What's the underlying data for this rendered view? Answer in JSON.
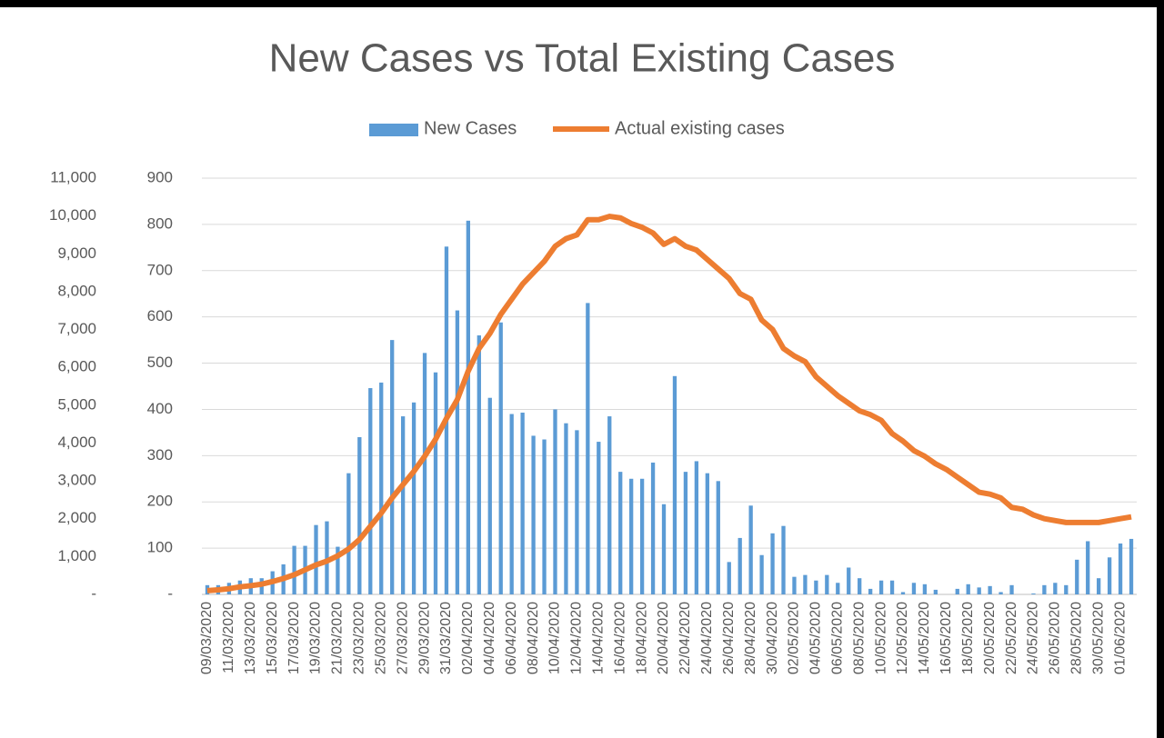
{
  "chart_data": {
    "type": "bar_line",
    "title": "New Cases vs Total Existing Cases",
    "categories": [
      "09/03/2020",
      null,
      "11/03/2020",
      null,
      "13/03/2020",
      null,
      "15/03/2020",
      null,
      "17/03/2020",
      null,
      "19/03/2020",
      null,
      "21/03/2020",
      null,
      "23/03/2020",
      null,
      "25/03/2020",
      null,
      "27/03/2020",
      null,
      "29/03/2020",
      null,
      "31/03/2020",
      null,
      "02/04/2020",
      null,
      "04/04/2020",
      null,
      "06/04/2020",
      null,
      "08/04/2020",
      null,
      "10/04/2020",
      null,
      "12/04/2020",
      null,
      "14/04/2020",
      null,
      "16/04/2020",
      null,
      "18/04/2020",
      null,
      "20/04/2020",
      null,
      "22/04/2020",
      null,
      "24/04/2020",
      null,
      "26/04/2020",
      null,
      "28/04/2020",
      null,
      "30/04/2020",
      null,
      "02/05/2020",
      null,
      "04/05/2020",
      null,
      "06/05/2020",
      null,
      "08/05/2020",
      null,
      "10/05/2020",
      null,
      "12/05/2020",
      null,
      "14/05/2020",
      null,
      "16/05/2020",
      null,
      "18/05/2020",
      null,
      "20/05/2020",
      null,
      "22/05/2020",
      null,
      "24/05/2020",
      null,
      "26/05/2020",
      null,
      "28/05/2020",
      null,
      "30/05/2020",
      null,
      "01/06/2020",
      null
    ],
    "series": [
      {
        "name": "New Cases",
        "kind": "bar",
        "axis": "y2",
        "color": "#5b9bd5",
        "values": [
          20,
          20,
          25,
          30,
          35,
          35,
          50,
          65,
          105,
          105,
          150,
          158,
          103,
          262,
          340,
          446,
          458,
          550,
          385,
          415,
          522,
          480,
          752,
          614,
          808,
          560,
          425,
          588,
          390,
          393,
          343,
          335,
          400,
          370,
          355,
          630,
          330,
          385,
          265,
          250,
          250,
          285,
          195,
          472,
          265,
          288,
          262,
          245,
          70,
          122,
          192,
          85,
          132,
          148,
          38,
          42,
          30,
          42,
          25,
          58,
          35,
          12,
          30,
          30,
          5,
          25,
          22,
          10,
          0,
          12,
          22,
          15,
          18,
          5,
          20,
          0,
          2,
          20,
          25,
          20,
          75,
          115,
          35,
          80,
          110,
          120
        ]
      },
      {
        "name": "Actual existing cases",
        "kind": "line",
        "axis": "y",
        "color": "#ed7d31",
        "values": [
          100,
          120,
          150,
          200,
          230,
          270,
          340,
          420,
          520,
          650,
          780,
          880,
          1020,
          1200,
          1450,
          1800,
          2150,
          2550,
          2900,
          3250,
          3650,
          4100,
          4650,
          5150,
          5900,
          6500,
          6900,
          7400,
          7800,
          8200,
          8500,
          8800,
          9200,
          9400,
          9500,
          9900,
          9900,
          9990,
          9950,
          9800,
          9700,
          9550,
          9250,
          9400,
          9200,
          9100,
          8850,
          8600,
          8350,
          7950,
          7800,
          7250,
          7000,
          6500,
          6300,
          6150,
          5750,
          5500,
          5250,
          5050,
          4850,
          4750,
          4600,
          4250,
          4050,
          3800,
          3650,
          3450,
          3300,
          3100,
          2900,
          2700,
          2650,
          2550,
          2300,
          2250,
          2100,
          2000,
          1950,
          1900,
          1900,
          1900,
          1900,
          1950,
          2000,
          2050
        ]
      }
    ],
    "ylim": [
      0,
      11000
    ],
    "yticks": [
      {
        "value": 0,
        "label": "-"
      },
      {
        "value": 1000,
        "label": "1,000"
      },
      {
        "value": 2000,
        "label": "2,000"
      },
      {
        "value": 3000,
        "label": "3,000"
      },
      {
        "value": 4000,
        "label": "4,000"
      },
      {
        "value": 5000,
        "label": "5,000"
      },
      {
        "value": 6000,
        "label": "6,000"
      },
      {
        "value": 7000,
        "label": "7,000"
      },
      {
        "value": 8000,
        "label": "8,000"
      },
      {
        "value": 9000,
        "label": "9,000"
      },
      {
        "value": 10000,
        "label": "10,000"
      },
      {
        "value": 11000,
        "label": "11,000"
      }
    ],
    "y2lim": [
      0,
      900
    ],
    "y2ticks": [
      {
        "value": 0,
        "label": "-"
      },
      100,
      200,
      300,
      400,
      500,
      600,
      700,
      800,
      900
    ],
    "grid": true,
    "legend": "top"
  }
}
